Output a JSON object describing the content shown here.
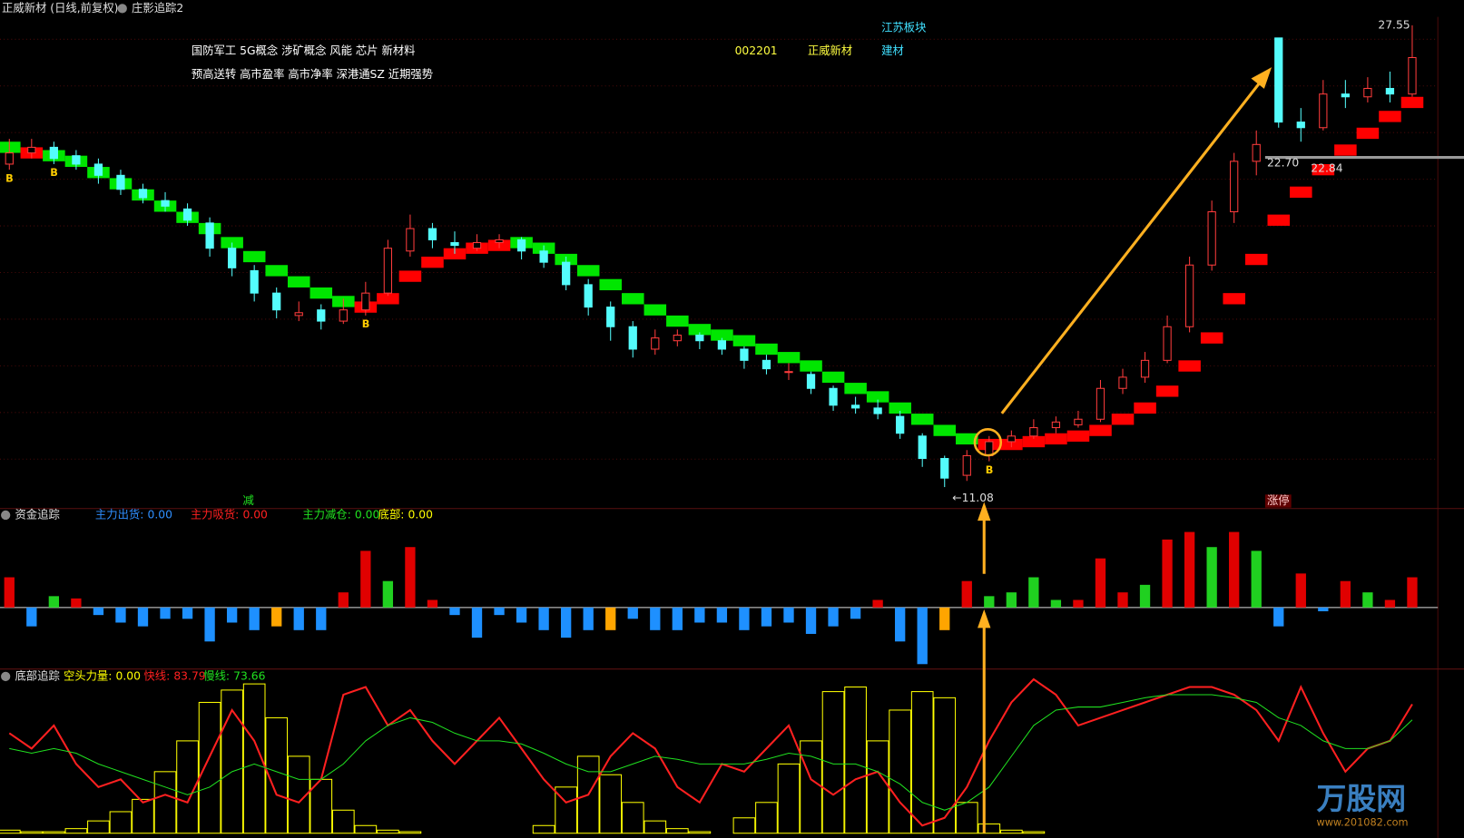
{
  "header": {
    "title": "正威新材 (日线,前复权)",
    "indicator": "庄影追踪2",
    "watermark": "万股网",
    "site": "www.201082.com"
  },
  "chart_data": [
    {
      "type": "candlestick",
      "tags": [
        "国防军工 5G概念 涉矿概念 风能 芯片 新材料",
        "预高送转 高市盈率 高市净率 深港通SZ 近期强势"
      ],
      "code": "002201",
      "name": "正威新材",
      "sector": "江苏板块",
      "industry": "建材",
      "ohlc": [
        [
          22.6,
          23.5,
          22.4,
          23.0
        ],
        [
          23.0,
          23.5,
          22.8,
          23.2
        ],
        [
          23.2,
          23.4,
          22.6,
          22.8
        ],
        [
          22.9,
          23.1,
          22.4,
          22.6
        ],
        [
          22.6,
          22.8,
          21.9,
          22.2
        ],
        [
          22.2,
          22.4,
          21.5,
          21.7
        ],
        [
          21.7,
          21.9,
          21.2,
          21.4
        ],
        [
          21.3,
          21.6,
          20.9,
          21.1
        ],
        [
          21.0,
          21.2,
          20.4,
          20.6
        ],
        [
          20.5,
          20.7,
          19.3,
          19.6
        ],
        [
          19.6,
          19.8,
          18.6,
          18.9
        ],
        [
          18.8,
          19.0,
          17.7,
          18.0
        ],
        [
          18.0,
          18.2,
          17.1,
          17.4
        ],
        [
          17.2,
          17.7,
          17.0,
          17.3
        ],
        [
          17.4,
          17.6,
          16.7,
          17.0
        ],
        [
          17.0,
          17.8,
          16.9,
          17.4
        ],
        [
          17.4,
          18.4,
          17.2,
          18.0
        ],
        [
          18.0,
          19.9,
          17.9,
          19.6
        ],
        [
          19.5,
          20.8,
          19.3,
          20.3
        ],
        [
          20.3,
          20.5,
          19.6,
          19.9
        ],
        [
          19.8,
          20.2,
          19.4,
          19.7
        ],
        [
          19.6,
          20.1,
          19.5,
          19.8
        ],
        [
          19.8,
          20.1,
          19.6,
          19.9
        ],
        [
          19.9,
          20.0,
          19.2,
          19.5
        ],
        [
          19.5,
          19.7,
          18.9,
          19.1
        ],
        [
          19.1,
          19.3,
          18.1,
          18.3
        ],
        [
          18.3,
          18.5,
          17.2,
          17.5
        ],
        [
          17.5,
          17.7,
          16.3,
          16.8
        ],
        [
          16.8,
          17.0,
          15.7,
          16.0
        ],
        [
          16.0,
          16.7,
          15.8,
          16.4
        ],
        [
          16.3,
          16.7,
          16.1,
          16.5
        ],
        [
          16.5,
          16.6,
          16.0,
          16.3
        ],
        [
          16.3,
          16.4,
          15.8,
          16.0
        ],
        [
          16.0,
          16.1,
          15.3,
          15.6
        ],
        [
          15.6,
          15.8,
          15.1,
          15.3
        ],
        [
          15.2,
          15.5,
          14.9,
          15.2
        ],
        [
          15.1,
          15.2,
          14.4,
          14.6
        ],
        [
          14.6,
          14.7,
          13.8,
          14.0
        ],
        [
          14.0,
          14.3,
          13.7,
          13.9
        ],
        [
          13.9,
          14.2,
          13.5,
          13.7
        ],
        [
          13.6,
          13.8,
          12.8,
          13.0
        ],
        [
          12.9,
          13.0,
          11.8,
          12.1
        ],
        [
          12.1,
          12.2,
          11.08,
          11.4
        ],
        [
          11.5,
          12.4,
          11.3,
          12.2
        ],
        [
          12.2,
          12.9,
          12.0,
          12.7
        ],
        [
          12.7,
          13.1,
          12.5,
          12.9
        ],
        [
          12.9,
          13.5,
          12.8,
          13.2
        ],
        [
          13.2,
          13.6,
          13.0,
          13.4
        ],
        [
          13.3,
          13.8,
          13.2,
          13.5
        ],
        [
          13.5,
          14.9,
          13.4,
          14.6
        ],
        [
          14.6,
          15.3,
          14.4,
          15.0
        ],
        [
          15.0,
          15.9,
          14.8,
          15.6
        ],
        [
          15.6,
          17.2,
          15.5,
          16.8
        ],
        [
          16.8,
          19.3,
          16.6,
          19.0
        ],
        [
          19.0,
          21.3,
          18.8,
          20.9
        ],
        [
          20.9,
          23.0,
          20.5,
          22.7
        ],
        [
          22.7,
          23.8,
          22.2,
          23.3
        ],
        [
          27.1,
          27.1,
          23.9,
          24.1
        ],
        [
          24.1,
          24.6,
          23.4,
          23.9
        ],
        [
          23.9,
          25.6,
          23.8,
          25.1
        ],
        [
          25.1,
          25.6,
          24.6,
          25.0
        ],
        [
          25.0,
          25.7,
          24.8,
          25.3
        ],
        [
          25.3,
          25.9,
          24.8,
          25.1
        ],
        [
          25.1,
          27.55,
          25.0,
          26.4
        ]
      ],
      "up_color": "#ff3c3c",
      "down_color": "#54fcfc",
      "trend": [
        23.2,
        23.0,
        22.9,
        22.7,
        22.3,
        21.9,
        21.5,
        21.1,
        20.7,
        20.3,
        19.8,
        19.3,
        18.8,
        18.4,
        18.0,
        17.7,
        17.5,
        17.8,
        18.6,
        19.1,
        19.4,
        19.6,
        19.7,
        19.8,
        19.6,
        19.2,
        18.8,
        18.3,
        17.8,
        17.4,
        17.0,
        16.7,
        16.5,
        16.3,
        16.0,
        15.7,
        15.4,
        15.0,
        14.6,
        14.3,
        13.9,
        13.5,
        13.1,
        12.8,
        12.6,
        12.6,
        12.7,
        12.8,
        12.9,
        13.1,
        13.5,
        13.9,
        14.5,
        15.4,
        16.4,
        17.8,
        19.2,
        20.6,
        21.6,
        22.4,
        23.1,
        23.7,
        24.3,
        24.8
      ],
      "trend_up_color": "#ff0000",
      "trend_down_color": "#00e600",
      "ylim": [
        10.48,
        28.45
      ],
      "annotations": [
        {
          "label": "27.55",
          "value": 27.55
        },
        {
          "label": "22.70",
          "value": 22.7
        },
        {
          "label": "22.84",
          "value": 22.84
        },
        {
          "label": "←11.08",
          "value": 11.08
        }
      ],
      "markers": [
        "B",
        "B",
        "B",
        "B"
      ],
      "bottom_labels": [
        "减",
        "涨停"
      ]
    },
    {
      "type": "bar",
      "title": "资金追踪",
      "legend": [
        {
          "name": "主力出货:",
          "label": "0.00",
          "value": 0,
          "color": "#2f8fff"
        },
        {
          "name": "主力吸货:",
          "label": "0.00",
          "value": 0,
          "color": "#ff2020"
        },
        {
          "name": "主力减仓:",
          "label": "0.00",
          "value": 0,
          "color": "#20e020"
        },
        {
          "name": "底部:",
          "label": "0.00",
          "value": 0,
          "color": "#ffff00"
        }
      ],
      "values": [
        4,
        -2.5,
        1.5,
        1.2,
        -1,
        -2,
        -2.5,
        -1.5,
        -1.5,
        -4.5,
        -2,
        -3,
        -2.5,
        -3,
        -3,
        2,
        7.5,
        3.5,
        8,
        1,
        -1,
        -4,
        -1,
        -2,
        -3,
        -4,
        -3,
        -3,
        -1.5,
        -3,
        -3,
        -2,
        -2,
        -3,
        -2.5,
        -2,
        -3.5,
        -2.5,
        -1.5,
        1,
        -4.5,
        -7.5,
        -3,
        3.5,
        1.5,
        2,
        4,
        1,
        1,
        6.5,
        2,
        3,
        9,
        10,
        8,
        10,
        7.5,
        -2.5,
        4.5,
        -0.5,
        3.5,
        2,
        1,
        4
      ],
      "kinds": [
        "r",
        "b",
        "g",
        "r",
        "b",
        "b",
        "b",
        "b",
        "b",
        "b",
        "b",
        "b",
        "o",
        "b",
        "b",
        "r",
        "r",
        "g",
        "r",
        "r",
        "b",
        "b",
        "b",
        "b",
        "b",
        "b",
        "b",
        "o",
        "b",
        "b",
        "b",
        "b",
        "b",
        "b",
        "b",
        "b",
        "b",
        "b",
        "b",
        "r",
        "b",
        "b",
        "o",
        "r",
        "g",
        "g",
        "g",
        "g",
        "r",
        "r",
        "r",
        "g",
        "r",
        "r",
        "g",
        "r",
        "g",
        "b",
        "r",
        "b",
        "r",
        "g",
        "r",
        "r"
      ],
      "palette": {
        "r": "#e00000",
        "g": "#20d020",
        "b": "#1e90ff",
        "o": "#ffa500"
      },
      "ylim": [
        -8.15,
        13.1
      ]
    },
    {
      "type": "line",
      "title": "底部追踪",
      "legend": [
        {
          "name": "空头力量:",
          "label": "0.00",
          "value": 0,
          "color": "#ffff00"
        },
        {
          "name": "快线:",
          "label": "83.79",
          "value": 83.79,
          "color": "#ff2020"
        },
        {
          "name": "慢线:",
          "label": "73.66",
          "value": 73.66,
          "color": "#20e020"
        }
      ],
      "bars": [
        2,
        1,
        1,
        3,
        8,
        14,
        22,
        40,
        60,
        85,
        93,
        97,
        75,
        50,
        35,
        15,
        5,
        2,
        1,
        0,
        0,
        0,
        0,
        0,
        5,
        30,
        50,
        38,
        20,
        8,
        3,
        1,
        0,
        10,
        20,
        45,
        60,
        92,
        95,
        60,
        80,
        92,
        88,
        20,
        6,
        2,
        1,
        0,
        0,
        0,
        0,
        0,
        0,
        0,
        0,
        0,
        0,
        0,
        0,
        0,
        0,
        0,
        0,
        0
      ],
      "bar_color": "#ffff00",
      "series": [
        {
          "color": "#ff2020",
          "values": [
            65,
            55,
            70,
            45,
            30,
            35,
            20,
            25,
            20,
            50,
            80,
            60,
            25,
            20,
            35,
            90,
            95,
            70,
            80,
            60,
            45,
            60,
            75,
            55,
            35,
            20,
            25,
            50,
            65,
            55,
            30,
            20,
            45,
            40,
            55,
            70,
            35,
            25,
            35,
            40,
            20,
            5,
            10,
            30,
            60,
            85,
            100,
            90,
            70,
            75,
            80,
            85,
            90,
            95,
            95,
            90,
            80,
            60,
            95,
            65,
            40,
            55,
            60,
            83.79
          ]
        },
        {
          "color": "#20e020",
          "values": [
            55,
            52,
            55,
            52,
            45,
            40,
            35,
            30,
            25,
            30,
            40,
            45,
            40,
            35,
            35,
            45,
            60,
            70,
            75,
            72,
            65,
            60,
            60,
            58,
            52,
            45,
            40,
            40,
            45,
            50,
            48,
            45,
            45,
            45,
            48,
            52,
            50,
            45,
            45,
            40,
            32,
            20,
            15,
            20,
            30,
            50,
            70,
            80,
            82,
            82,
            85,
            88,
            90,
            90,
            90,
            88,
            85,
            75,
            70,
            60,
            55,
            55,
            60,
            73.66
          ]
        }
      ],
      "ylim": [
        0,
        100
      ]
    }
  ]
}
